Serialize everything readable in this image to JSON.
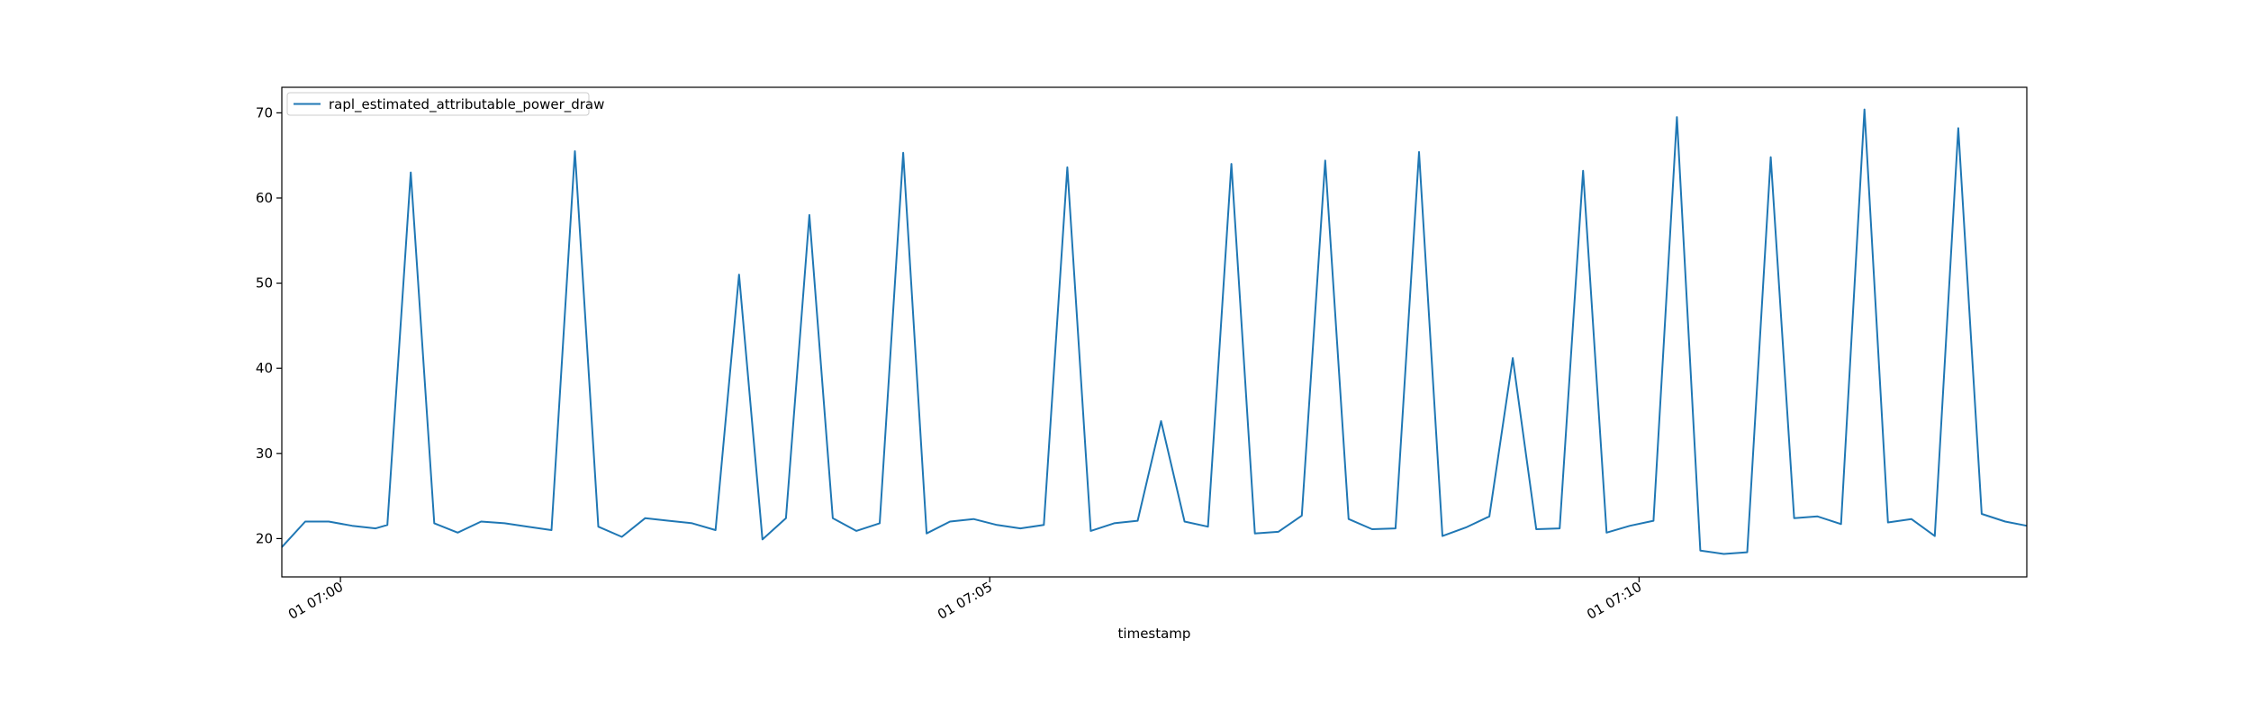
{
  "chart_data": {
    "type": "line",
    "title": "",
    "xlabel": "timestamp",
    "ylabel": "",
    "x_unit": "seconds",
    "xlim": [
      -65,
      1870
    ],
    "ylim": [
      15.5,
      73
    ],
    "x_ticks": [
      {
        "value": 0,
        "label": "01 07:00"
      },
      {
        "value": 720,
        "label": "01 07:05"
      },
      {
        "value": 1440,
        "label": "01 07:10"
      }
    ],
    "y_ticks": [
      {
        "value": 20,
        "label": "20"
      },
      {
        "value": 30,
        "label": "30"
      },
      {
        "value": 40,
        "label": "40"
      },
      {
        "value": 50,
        "label": "50"
      },
      {
        "value": 60,
        "label": "60"
      },
      {
        "value": 70,
        "label": "70"
      }
    ],
    "grid": false,
    "legend": {
      "position": "top-left"
    },
    "colors": {
      "series": "#1f77b4",
      "frame": "#000000"
    },
    "series": [
      {
        "name": "rapl_estimated_attributable_power_draw",
        "x": [
          -65,
          -39,
          -13,
          13,
          39,
          52,
          78,
          104,
          130,
          156,
          182,
          208,
          234,
          260,
          286,
          312,
          338,
          364,
          390,
          416,
          442,
          468,
          494,
          520,
          546,
          572,
          598,
          624,
          650,
          676,
          702,
          728,
          754,
          780,
          806,
          832,
          858,
          884,
          910,
          936,
          962,
          988,
          1014,
          1040,
          1066,
          1092,
          1118,
          1144,
          1170,
          1196,
          1222,
          1248,
          1274,
          1300,
          1326,
          1352,
          1378,
          1404,
          1430,
          1456,
          1482,
          1508,
          1534,
          1560,
          1586,
          1612,
          1638,
          1664,
          1690,
          1716,
          1742,
          1768,
          1794,
          1820,
          1846,
          1870
        ],
        "values": [
          19.0,
          22.0,
          22.0,
          21.5,
          21.2,
          21.6,
          63.0,
          21.8,
          20.7,
          22.0,
          21.8,
          21.4,
          21.0,
          65.5,
          21.4,
          20.2,
          22.4,
          22.1,
          21.8,
          21.0,
          51.0,
          19.9,
          22.4,
          58.0,
          22.4,
          20.9,
          21.8,
          65.3,
          20.6,
          22.0,
          22.3,
          21.6,
          21.2,
          21.6,
          63.6,
          20.9,
          21.8,
          22.1,
          33.8,
          22.0,
          21.4,
          64.0,
          20.6,
          20.8,
          22.7,
          64.4,
          22.3,
          21.1,
          21.2,
          65.4,
          20.3,
          21.3,
          22.6,
          41.2,
          21.1,
          21.2,
          63.2,
          20.7,
          21.5,
          22.1,
          69.5,
          18.6,
          18.2,
          18.4,
          64.8,
          22.4,
          22.6,
          21.7,
          70.4,
          21.9,
          22.3,
          20.3,
          68.2,
          22.9,
          22.0,
          21.5
        ]
      }
    ]
  }
}
